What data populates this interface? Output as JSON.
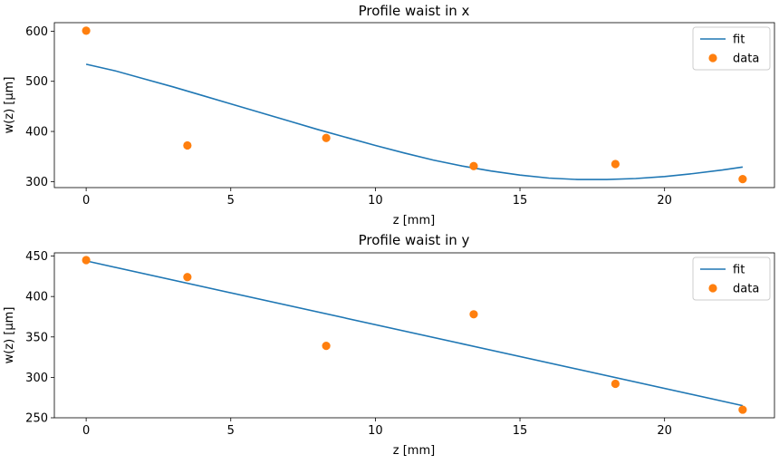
{
  "chart_data": [
    {
      "type": "line",
      "title": "Profile waist in x",
      "xlabel": "z [mm]",
      "ylabel": "w(z) [µm]",
      "xlim": [
        -1.1,
        23.8
      ],
      "ylim": [
        288,
        617
      ],
      "xticks": [
        0,
        5,
        10,
        15,
        20
      ],
      "yticks": [
        300,
        400,
        500,
        600
      ],
      "legend_position": "top-right",
      "series": [
        {
          "name": "fit",
          "kind": "line",
          "color": "#1f77b4",
          "x": [
            0,
            1.0,
            2.0,
            3.0,
            4.0,
            5.0,
            6.0,
            7.0,
            8.0,
            9.0,
            10.0,
            11.0,
            12.0,
            13.0,
            14.0,
            15.0,
            16.0,
            17.0,
            18.0,
            19.0,
            20.0,
            21.0,
            22.0,
            22.7
          ],
          "y": [
            534,
            521,
            505,
            489,
            472,
            455,
            438,
            421,
            404,
            388,
            372,
            357,
            343,
            331,
            321,
            313,
            307,
            304,
            304,
            306,
            310,
            316,
            323,
            329
          ]
        },
        {
          "name": "data",
          "kind": "scatter",
          "color": "#ff7f0e",
          "x": [
            0,
            3.5,
            8.3,
            13.4,
            18.3,
            22.7
          ],
          "y": [
            601,
            372,
            387,
            331,
            335,
            305
          ]
        }
      ]
    },
    {
      "type": "line",
      "title": "Profile waist in y",
      "xlabel": "z [mm]",
      "ylabel": "w(z) [µm]",
      "xlim": [
        -1.1,
        23.8
      ],
      "ylim": [
        250,
        454
      ],
      "xticks": [
        0,
        5,
        10,
        15,
        20
      ],
      "yticks": [
        250,
        300,
        350,
        400,
        450
      ],
      "legend_position": "top-right",
      "series": [
        {
          "name": "fit",
          "kind": "line",
          "color": "#1f77b4",
          "x": [
            0,
            22.7
          ],
          "y": [
            444,
            265
          ]
        },
        {
          "name": "data",
          "kind": "scatter",
          "color": "#ff7f0e",
          "x": [
            0,
            3.5,
            8.3,
            13.4,
            18.3,
            22.7
          ],
          "y": [
            445,
            424,
            339,
            378,
            292,
            260
          ]
        }
      ]
    }
  ]
}
